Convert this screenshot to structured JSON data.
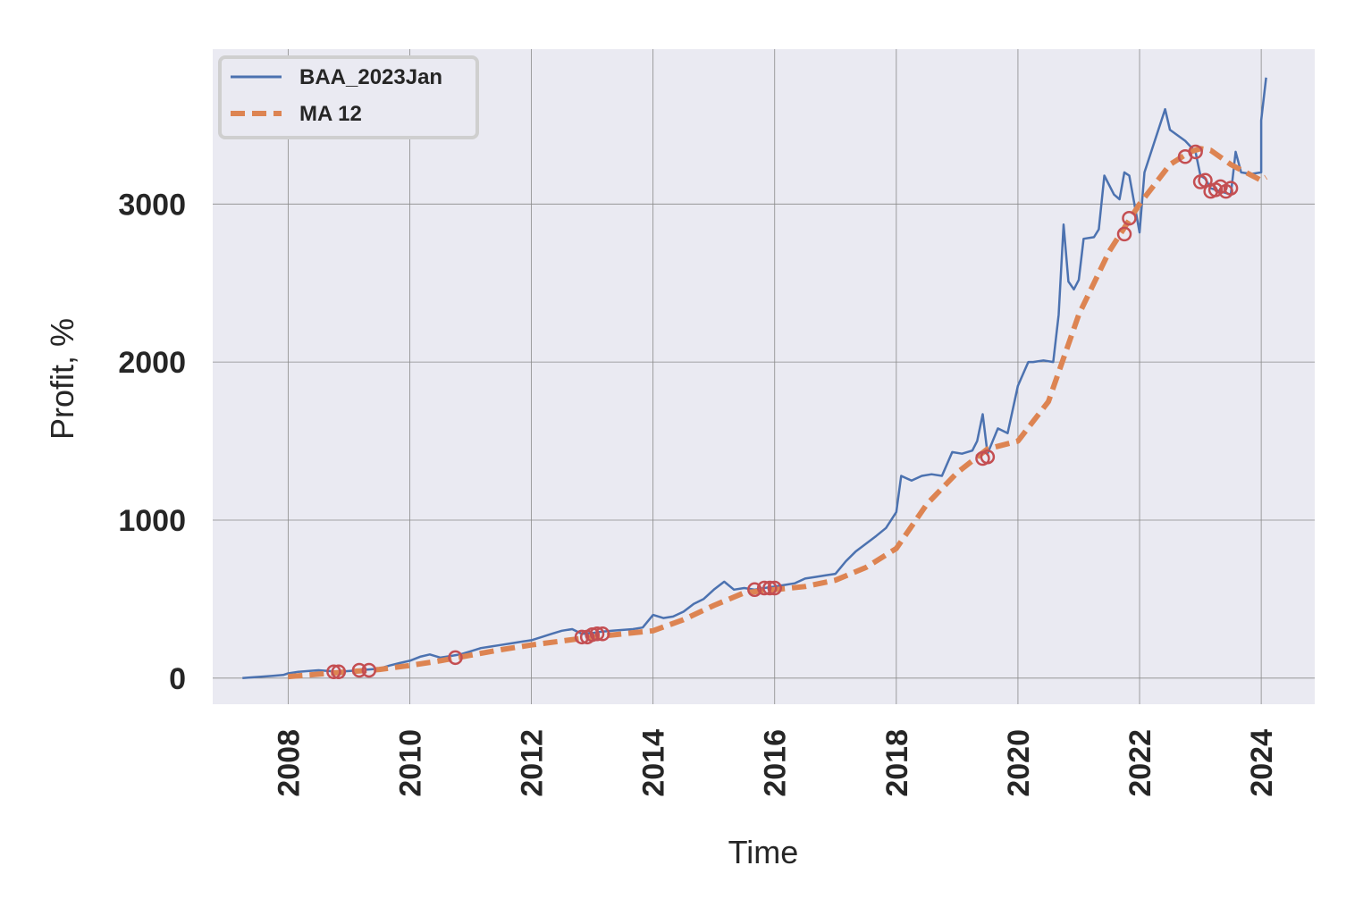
{
  "chart_data": {
    "type": "line",
    "title": "",
    "xlabel": "Time",
    "ylabel": "Profit, %",
    "xlim": [
      2006.76,
      2024.88
    ],
    "ylim": [
      -165,
      3980
    ],
    "x_ticks": [
      2008,
      2010,
      2012,
      2014,
      2016,
      2018,
      2020,
      2022,
      2024
    ],
    "y_ticks": [
      0,
      1000,
      2000,
      3000
    ],
    "grid": true,
    "legend": "top-left",
    "colors": {
      "background": "#eaeaf2",
      "grid": "#8a8a8a",
      "series_main": "#4c72b0",
      "series_ma": "#dd8452",
      "markers": "#c44e52"
    },
    "series": [
      {
        "name": "BAA_2023Jan",
        "style": "solid",
        "x": [
          2007.25,
          2007.42,
          2007.58,
          2007.75,
          2007.92,
          2008.0,
          2008.17,
          2008.33,
          2008.5,
          2008.67,
          2008.83,
          2009.0,
          2009.17,
          2009.33,
          2009.5,
          2009.67,
          2009.83,
          2010.0,
          2010.17,
          2010.33,
          2010.5,
          2010.67,
          2010.83,
          2011.0,
          2011.17,
          2011.33,
          2011.5,
          2011.67,
          2011.83,
          2012.0,
          2012.17,
          2012.33,
          2012.5,
          2012.67,
          2012.83,
          2013.0,
          2013.17,
          2013.33,
          2013.5,
          2013.67,
          2013.83,
          2014.0,
          2014.17,
          2014.33,
          2014.5,
          2014.67,
          2014.83,
          2015.0,
          2015.17,
          2015.33,
          2015.5,
          2015.67,
          2015.83,
          2016.0,
          2016.17,
          2016.33,
          2016.5,
          2016.67,
          2016.83,
          2017.0,
          2017.17,
          2017.33,
          2017.5,
          2017.67,
          2017.83,
          2018.0,
          2018.08,
          2018.25,
          2018.42,
          2018.58,
          2018.75,
          2018.92,
          2019.08,
          2019.25,
          2019.33,
          2019.42,
          2019.5,
          2019.67,
          2019.83,
          2020.0,
          2020.17,
          2020.25,
          2020.42,
          2020.58,
          2020.67,
          2020.75,
          2020.83,
          2020.92,
          2021.0,
          2021.08,
          2021.25,
          2021.33,
          2021.42,
          2021.58,
          2021.67,
          2021.75,
          2021.83,
          2022.0,
          2022.08,
          2022.25,
          2022.42,
          2022.5,
          2022.75,
          2022.92,
          2023.0,
          2023.08,
          2023.17,
          2023.33,
          2023.5,
          2023.58,
          2023.67,
          2023.83,
          2024.0,
          2024.0,
          2024.08
        ],
        "y": [
          0,
          5,
          10,
          15,
          20,
          30,
          40,
          45,
          50,
          45,
          40,
          45,
          50,
          55,
          60,
          80,
          95,
          110,
          135,
          150,
          130,
          140,
          150,
          170,
          190,
          200,
          210,
          220,
          230,
          240,
          260,
          280,
          300,
          310,
          280,
          285,
          295,
          300,
          305,
          310,
          320,
          400,
          380,
          390,
          420,
          470,
          500,
          560,
          610,
          560,
          570,
          560,
          570,
          580,
          590,
          600,
          630,
          640,
          650,
          660,
          740,
          800,
          850,
          900,
          950,
          1050,
          1280,
          1250,
          1280,
          1290,
          1280,
          1430,
          1420,
          1440,
          1500,
          1670,
          1420,
          1580,
          1550,
          1850,
          2000,
          2000,
          2010,
          2000,
          2300,
          2870,
          2510,
          2460,
          2520,
          2780,
          2790,
          2840,
          3180,
          3060,
          3030,
          3200,
          3180,
          2820,
          3200,
          3400,
          3600,
          3470,
          3400,
          3330,
          3180,
          3160,
          3100,
          3080,
          3060,
          3330,
          3200,
          3190,
          3200,
          3530,
          3800
        ]
      },
      {
        "name": "MA 12",
        "style": "dashed",
        "x": [
          2008.0,
          2008.5,
          2009.0,
          2009.5,
          2010.0,
          2010.5,
          2011.0,
          2011.5,
          2012.0,
          2012.5,
          2013.0,
          2013.5,
          2014.0,
          2014.5,
          2015.0,
          2015.5,
          2016.0,
          2016.5,
          2017.0,
          2017.5,
          2018.0,
          2018.5,
          2019.0,
          2019.5,
          2020.0,
          2020.5,
          2021.0,
          2021.5,
          2022.0,
          2022.5,
          2022.83,
          2023.0,
          2023.17,
          2023.5,
          2024.0,
          2024.08
        ],
        "y": [
          10,
          25,
          40,
          55,
          80,
          110,
          145,
          180,
          210,
          235,
          260,
          280,
          300,
          370,
          460,
          540,
          560,
          580,
          620,
          700,
          820,
          1100,
          1300,
          1450,
          1500,
          1750,
          2300,
          2700,
          3000,
          3250,
          3330,
          3350,
          3340,
          3250,
          3150,
          3170
        ]
      }
    ],
    "markers": {
      "shape": "open-circle",
      "x": [
        2008.75,
        2008.83,
        2009.17,
        2009.33,
        2010.75,
        2012.83,
        2012.92,
        2013.0,
        2013.08,
        2013.17,
        2015.67,
        2015.83,
        2015.92,
        2016.0,
        2019.42,
        2019.5,
        2021.75,
        2021.83,
        2022.75,
        2022.92,
        2023.0,
        2023.08,
        2023.17,
        2023.25,
        2023.33,
        2023.42,
        2023.5
      ],
      "y": [
        40,
        40,
        50,
        50,
        130,
        260,
        260,
        275,
        280,
        280,
        560,
        570,
        570,
        570,
        1390,
        1400,
        2810,
        2910,
        3300,
        3330,
        3140,
        3150,
        3080,
        3090,
        3110,
        3080,
        3100
      ]
    }
  }
}
